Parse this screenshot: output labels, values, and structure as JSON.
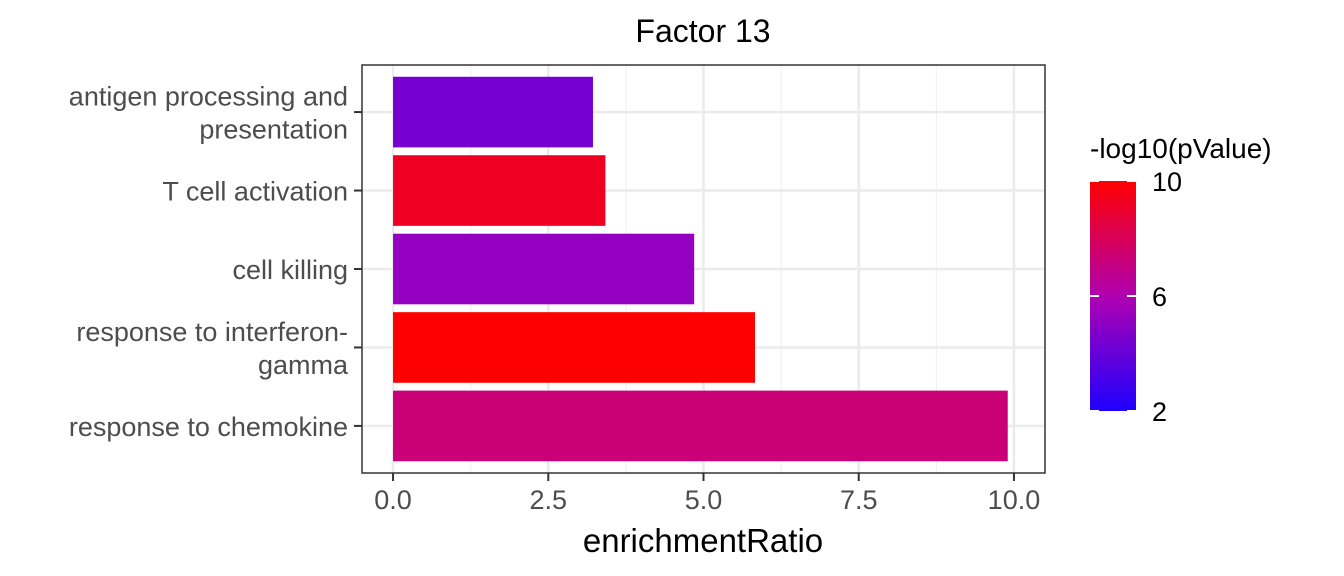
{
  "chart_data": {
    "type": "bar",
    "orientation": "horizontal",
    "title": "Factor 13",
    "xlabel": "enrichmentRatio",
    "ylabel": "",
    "xlim": [
      -0.5,
      10.5
    ],
    "xticks": [
      "0.0",
      "2.5",
      "5.0",
      "7.5",
      "10.0"
    ],
    "xtick_values": [
      0,
      2.5,
      5,
      7.5,
      10
    ],
    "grid": true,
    "categories": [
      [
        "antigen processing and",
        "presentation"
      ],
      [
        "T cell activation"
      ],
      [
        "cell killing"
      ],
      [
        "response to interferon-",
        "gamma"
      ],
      [
        "response to chemokine"
      ]
    ],
    "values": [
      3.22,
      3.42,
      4.85,
      5.83,
      9.9
    ],
    "color_values": [
      4.4,
      9.2,
      5.2,
      10.0,
      7.3
    ],
    "legend": {
      "title": "-log10(pValue)",
      "position": "right",
      "labels": [
        "10",
        "6",
        "2"
      ],
      "label_values": [
        10,
        6,
        2
      ],
      "range": [
        2,
        10
      ],
      "color_low": "#1e00ff",
      "color_high": "#ff0000"
    }
  }
}
